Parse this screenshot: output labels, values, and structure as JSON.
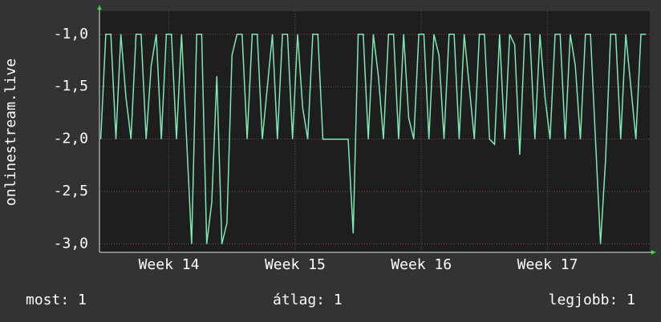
{
  "chart_data": {
    "type": "line",
    "y_label": "onlinestream.live",
    "x": [
      13.46,
      13.5,
      13.54,
      13.58,
      13.62,
      13.66,
      13.7,
      13.74,
      13.78,
      13.82,
      13.86,
      13.9,
      13.94,
      13.98,
      14.02,
      14.06,
      14.1,
      14.14,
      14.18,
      14.22,
      14.26,
      14.3,
      14.34,
      14.38,
      14.42,
      14.46,
      14.5,
      14.54,
      14.58,
      14.62,
      14.66,
      14.7,
      14.74,
      14.78,
      14.82,
      14.86,
      14.9,
      14.94,
      14.98,
      15.02,
      15.06,
      15.1,
      15.14,
      15.18,
      15.22,
      15.26,
      15.3,
      15.34,
      15.38,
      15.42,
      15.46,
      15.5,
      15.54,
      15.58,
      15.62,
      15.66,
      15.7,
      15.74,
      15.78,
      15.82,
      15.86,
      15.9,
      15.94,
      15.98,
      16.02,
      16.06,
      16.1,
      16.14,
      16.18,
      16.22,
      16.26,
      16.3,
      16.34,
      16.38,
      16.42,
      16.46,
      16.5,
      16.54,
      16.58,
      16.62,
      16.66,
      16.7,
      16.74,
      16.78,
      16.82,
      16.86,
      16.9,
      16.94,
      16.98,
      17.02,
      17.06,
      17.1,
      17.14,
      17.18,
      17.22,
      17.26,
      17.3,
      17.34,
      17.38,
      17.42,
      17.46,
      17.5,
      17.54,
      17.58,
      17.62,
      17.66,
      17.7,
      17.74,
      17.78
    ],
    "series": [
      {
        "name": "onlinestream.live",
        "color": "#7ee8b4",
        "values": [
          -2,
          -1,
          -1,
          -2,
          -1,
          -1.6,
          -2,
          -1,
          -1,
          -2,
          -1.3,
          -1,
          -2,
          -1,
          -1,
          -2,
          -1,
          -2,
          -3,
          -1,
          -1,
          -3,
          -2.6,
          -1.4,
          -3,
          -2.8,
          -1.2,
          -1,
          -1,
          -2,
          -1,
          -1,
          -2,
          -1.5,
          -1,
          -2,
          -1,
          -1,
          -2,
          -1,
          -1.7,
          -2,
          -1,
          -1,
          -2,
          -2,
          -2,
          -2,
          -2,
          -2,
          -2.9,
          -1,
          -1,
          -2,
          -1,
          -1.4,
          -2,
          -1,
          -1,
          -2,
          -1,
          -1.8,
          -2,
          -1,
          -1,
          -2,
          -1,
          -1.2,
          -2,
          -1,
          -1,
          -2,
          -1,
          -1.5,
          -2,
          -1,
          -1,
          -2,
          -2.05,
          -1,
          -2,
          -1,
          -1.1,
          -2.15,
          -1,
          -1,
          -2,
          -1,
          -1.6,
          -2,
          -1,
          -1,
          -2,
          -1,
          -1.3,
          -2,
          -1,
          -1,
          -2,
          -3,
          -2.2,
          -1,
          -1,
          -2,
          -1,
          -1.5,
          -2,
          -1,
          -1
        ]
      }
    ],
    "xlim": [
      13.45,
      17.81
    ],
    "xticks": [
      {
        "value": 14,
        "label": "Week 14"
      },
      {
        "value": 15,
        "label": "Week 15"
      },
      {
        "value": 16,
        "label": "Week 16"
      },
      {
        "value": 17,
        "label": "Week 17"
      }
    ],
    "ylim": [
      -3.08,
      -0.78
    ],
    "yticks": [
      {
        "value": -3,
        "label": "-3,0"
      },
      {
        "value": -2.5,
        "label": "-2,5"
      },
      {
        "value": -2,
        "label": "-2,0"
      },
      {
        "value": -1.5,
        "label": "-1,5"
      },
      {
        "value": -1,
        "label": "-1,0"
      }
    ],
    "grid": true,
    "footer": {
      "now": "most: 1",
      "average": "átlag: 1",
      "best": "legjobb: 1"
    }
  }
}
